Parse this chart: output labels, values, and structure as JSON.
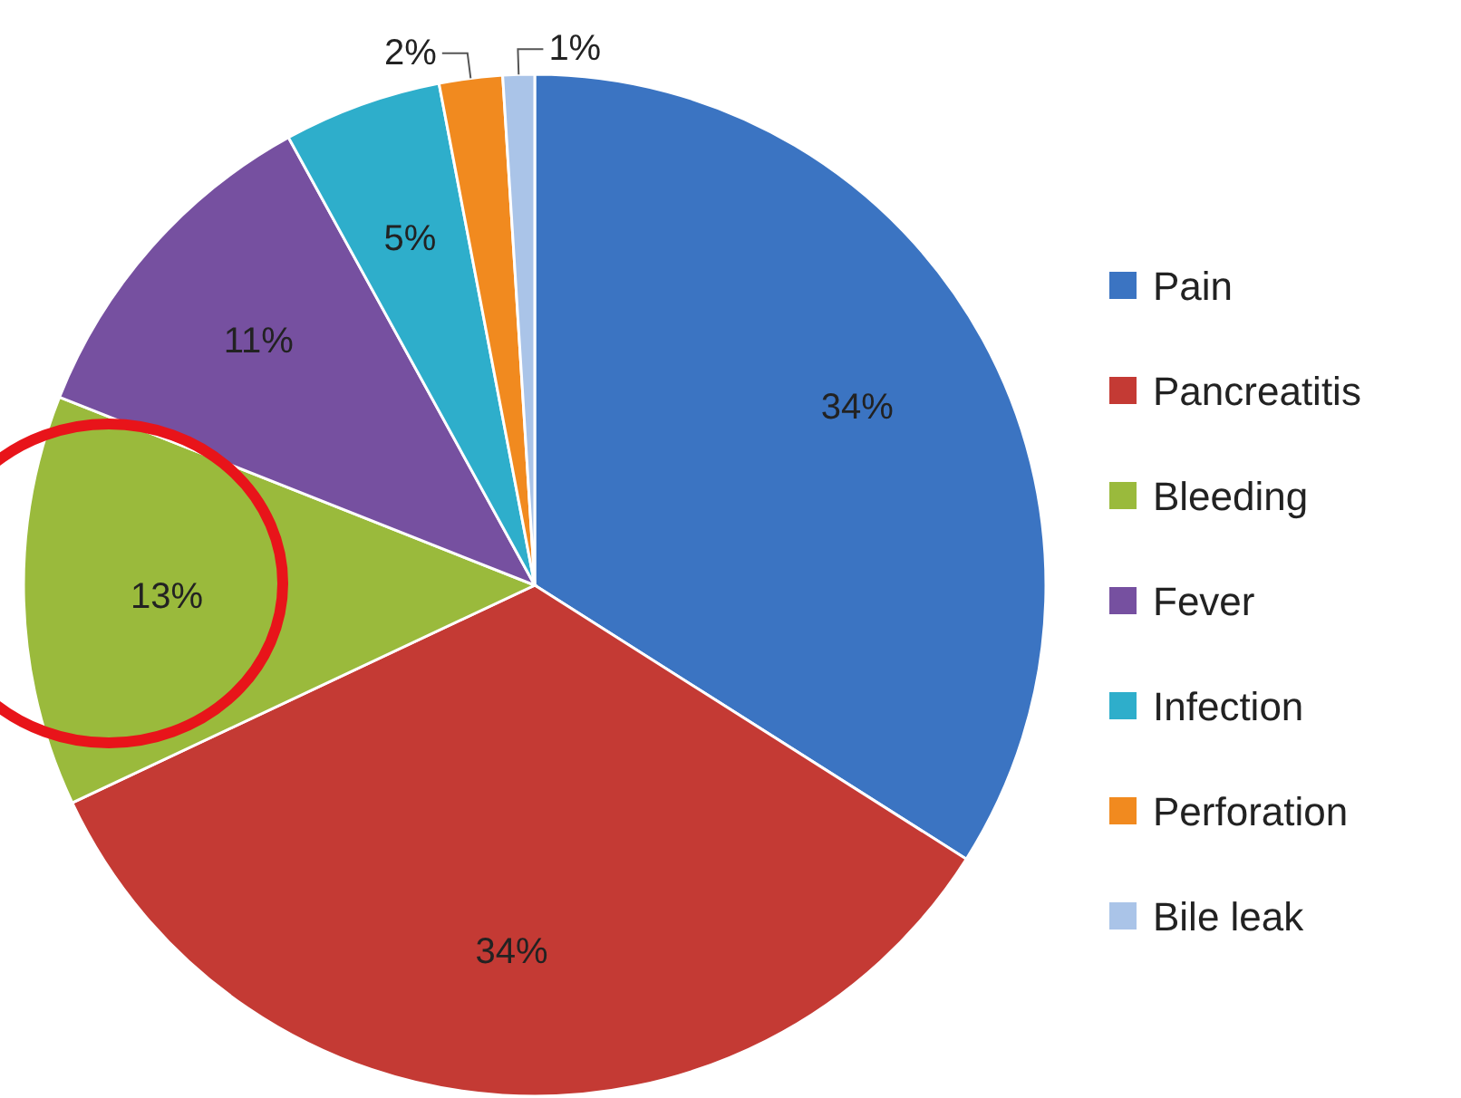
{
  "chart_data": {
    "type": "pie",
    "categories": [
      "Pain",
      "Pancreatitis",
      "Bleeding",
      "Fever",
      "Infection",
      "Perforation",
      "Bile leak"
    ],
    "values": [
      34,
      34,
      13,
      11,
      5,
      2,
      1
    ],
    "value_labels": [
      "34%",
      "34%",
      "13%",
      "11%",
      "5%",
      "2%",
      "1%"
    ],
    "colors": [
      "#3b74c2",
      "#c43a34",
      "#9aba3c",
      "#7650a0",
      "#2eaecb",
      "#f18a1f",
      "#aac4e8"
    ],
    "legend": "right"
  }
}
